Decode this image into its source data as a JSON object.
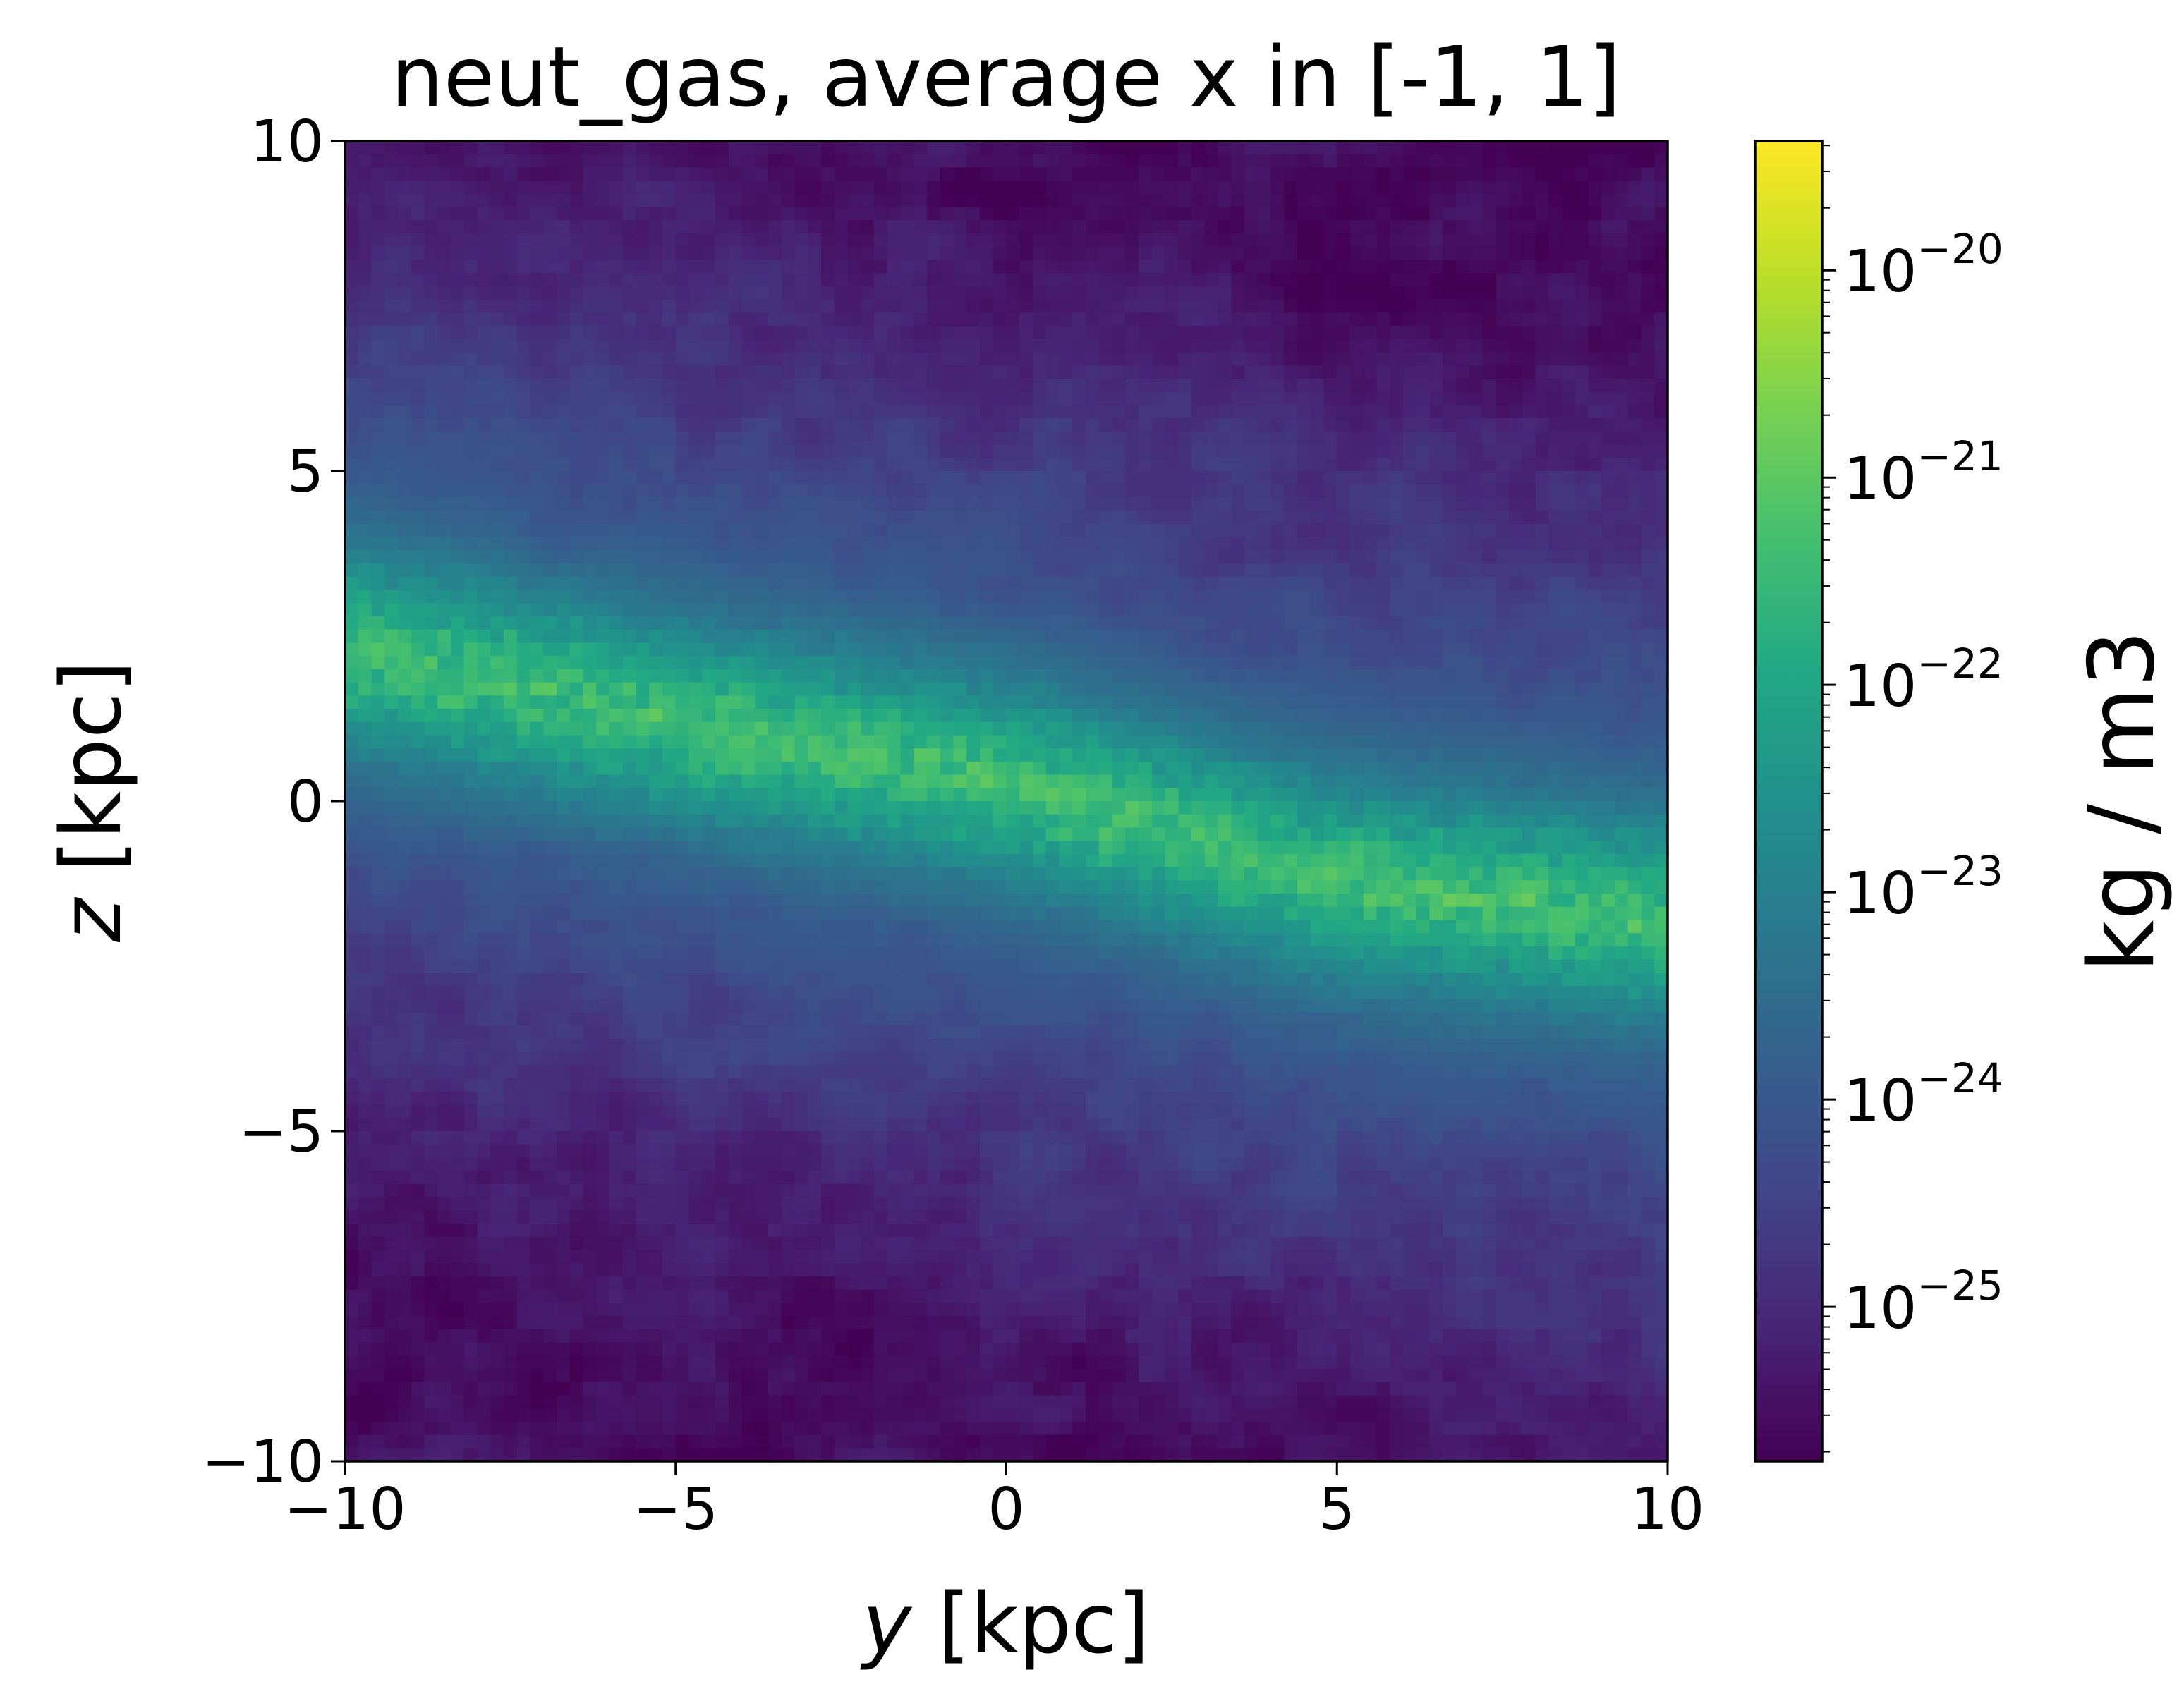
{
  "chart_data": {
    "type": "heatmap",
    "title": "neut_gas, average x in [-1, 1]",
    "xlabel_var": "y",
    "xlabel_unit": " [kpc]",
    "ylabel_var": "z",
    "ylabel_unit": " [kpc]",
    "xlim": [
      -10,
      10
    ],
    "ylim": [
      -10,
      10
    ],
    "x_ticks": [
      -10,
      -5,
      0,
      5,
      10
    ],
    "y_ticks": [
      -10,
      -5,
      0,
      5,
      10
    ],
    "x_tick_labels": [
      "−10",
      "−5",
      "0",
      "5",
      "10"
    ],
    "y_tick_labels": [
      "−10",
      "−5",
      "0",
      "5",
      "10"
    ],
    "colormap": "viridis",
    "colorbar": {
      "label": "kg / m3",
      "scale": "log",
      "range": [
        1.8e-26,
        4.2e-20
      ],
      "ticks": [
        {
          "mantissa": "10",
          "exp": "−20",
          "value": 1e-20
        },
        {
          "mantissa": "10",
          "exp": "−21",
          "value": 1e-21
        },
        {
          "mantissa": "10",
          "exp": "−22",
          "value": 1e-22
        },
        {
          "mantissa": "10",
          "exp": "−23",
          "value": 1e-23
        },
        {
          "mantissa": "10",
          "exp": "−24",
          "value": 1e-24
        },
        {
          "mantissa": "10",
          "exp": "−25",
          "value": 1e-25
        }
      ]
    },
    "field": {
      "description_note": "",
      "disk_centerline": [
        [
          -10,
          2.3
        ],
        [
          -5,
          1.2
        ],
        [
          0,
          0.3
        ],
        [
          5,
          -1.2
        ],
        [
          10,
          -1.8
        ]
      ],
      "disk_peak_log10": -20.6,
      "disk_halfwidth_kpc": 1.1,
      "halo_log10": -24.6,
      "void_log10": -25.6
    }
  }
}
